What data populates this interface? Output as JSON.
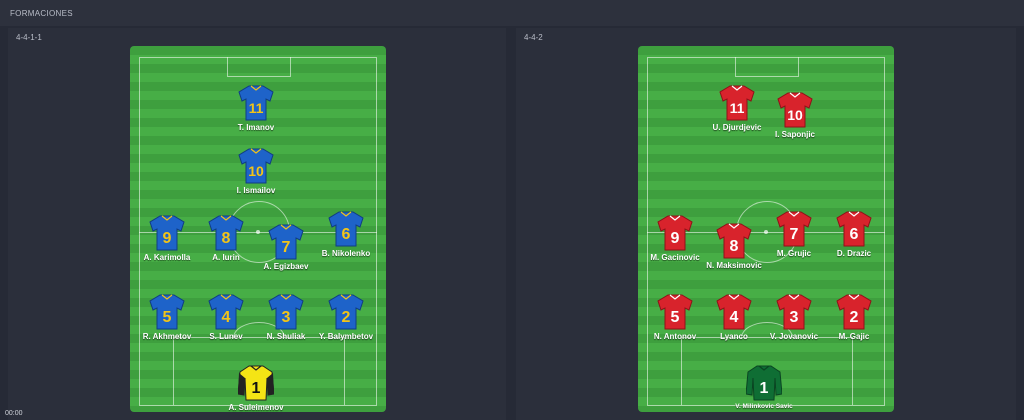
{
  "header": {
    "title": "FORMACIONES"
  },
  "clock": "00:00",
  "colors": {
    "blue_shirt": "#1e63c9",
    "yellow_number": "#f2c418",
    "red_shirt": "#d8232c",
    "white_number": "#ffffff",
    "gk_yellow": "#f4e415",
    "gk_green": "#0f6e34",
    "pitch_green": "#47ae46"
  },
  "left": {
    "formation": "4-4-1-1",
    "players": [
      {
        "number": "11",
        "name": "T. Imanov",
        "kit": "blue"
      },
      {
        "number": "10",
        "name": "I. Ismailov",
        "kit": "blue"
      },
      {
        "number": "9",
        "name": "A. Karimolla",
        "kit": "blue"
      },
      {
        "number": "8",
        "name": "A. Iurin",
        "kit": "blue"
      },
      {
        "number": "7",
        "name": "A. Egizbaev",
        "kit": "blue"
      },
      {
        "number": "6",
        "name": "B. Nikolenko",
        "kit": "blue"
      },
      {
        "number": "5",
        "name": "R. Akhmetov",
        "kit": "blue"
      },
      {
        "number": "4",
        "name": "S. Lunev",
        "kit": "blue"
      },
      {
        "number": "3",
        "name": "N. Shuliak",
        "kit": "blue"
      },
      {
        "number": "2",
        "name": "Y. Balymbetov",
        "kit": "blue"
      },
      {
        "number": "1",
        "name": "A. Suleimenov",
        "kit": "gk_yellow"
      }
    ]
  },
  "right": {
    "formation": "4-4-2",
    "players": [
      {
        "number": "11",
        "name": "U. Djurdjevic",
        "kit": "red"
      },
      {
        "number": "10",
        "name": "I. Saponjic",
        "kit": "red"
      },
      {
        "number": "9",
        "name": "M. Gacinovic",
        "kit": "red"
      },
      {
        "number": "8",
        "name": "N. Maksimovic",
        "kit": "red"
      },
      {
        "number": "7",
        "name": "M. Grujic",
        "kit": "red"
      },
      {
        "number": "6",
        "name": "D. Drazic",
        "kit": "red"
      },
      {
        "number": "5",
        "name": "N. Antonov",
        "kit": "red"
      },
      {
        "number": "4",
        "name": "Lyanco",
        "kit": "red"
      },
      {
        "number": "3",
        "name": "V. Jovanovic",
        "kit": "red"
      },
      {
        "number": "2",
        "name": "M. Gajic",
        "kit": "red"
      },
      {
        "number": "1",
        "name": "V. Milinkovic Savic",
        "kit": "gk_green"
      }
    ]
  }
}
